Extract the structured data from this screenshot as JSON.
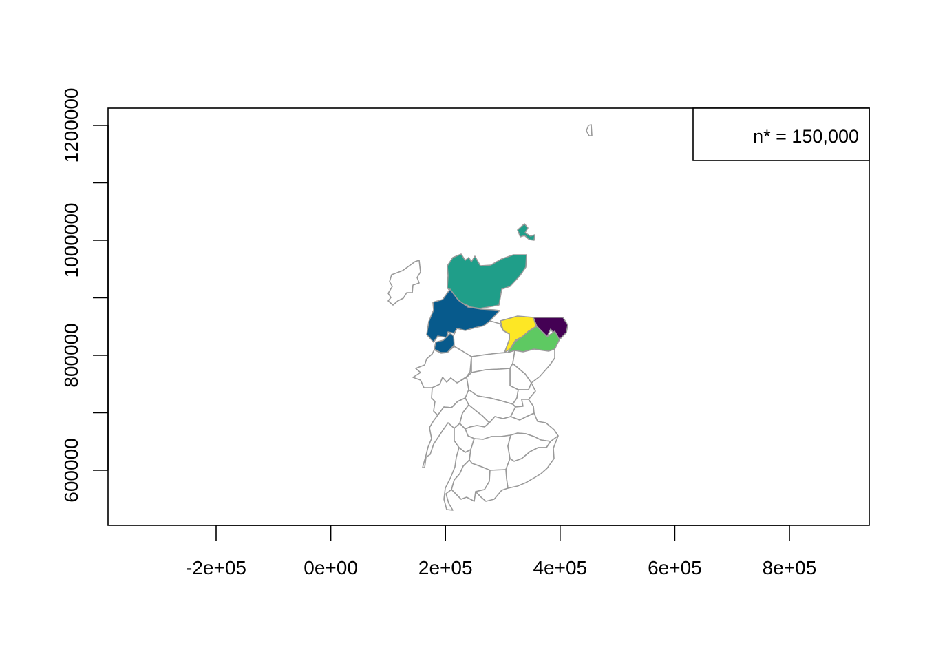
{
  "chart_data": {
    "type": "choropleth",
    "legend": {
      "text": "n* = 150,000",
      "position": "top-right"
    },
    "x_axis": {
      "ticks": [
        -200000,
        0,
        200000,
        400000,
        600000,
        800000
      ],
      "tick_labels": [
        "-2e+05",
        "0e+00",
        "2e+05",
        "4e+05",
        "6e+05",
        "8e+05"
      ]
    },
    "y_axis": {
      "ticks": [
        600000,
        700000,
        800000,
        900000,
        1000000,
        1100000,
        1200000
      ],
      "tick_labels": [
        "600000",
        "",
        "800000",
        "",
        "1000000",
        "",
        "1200000"
      ]
    },
    "fill_colors": {
      "teal": "#1f9e89",
      "blue": "#075a8c",
      "yellow": "#fde725",
      "purple": "#440154",
      "green": "#5ec962",
      "empty": "#ffffff",
      "border": "#9a9a9a"
    }
  }
}
